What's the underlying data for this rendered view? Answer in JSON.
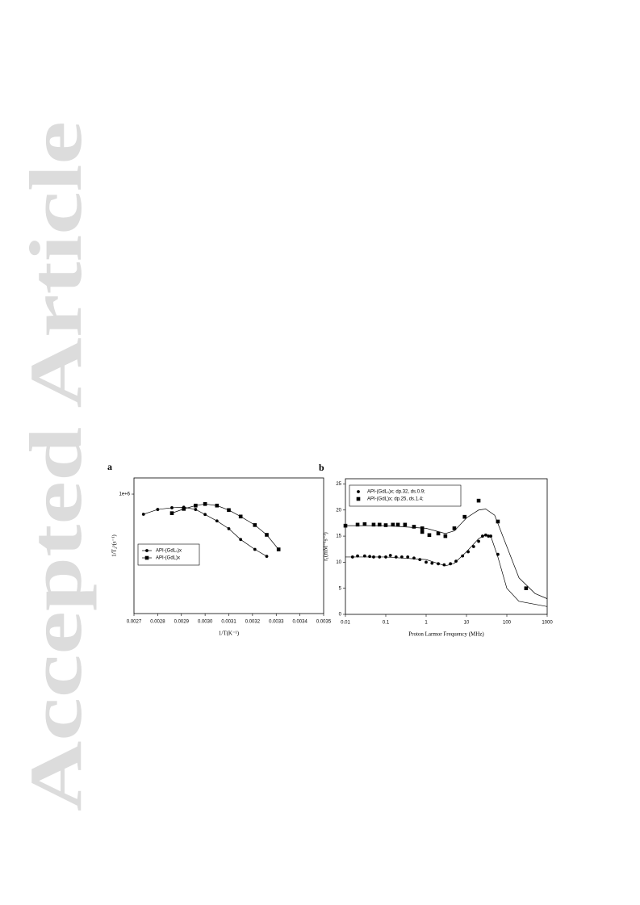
{
  "watermark": "Accepted Article",
  "chart_data": [
    {
      "type": "scatter",
      "label": "a",
      "xlabel": "1/T(K⁻¹)",
      "ylabel": "1/T₂ᵖ(s⁻¹)",
      "xlim": [
        0.0027,
        0.0035
      ],
      "xticks": [
        0.0027,
        0.0028,
        0.0029,
        {
          "value": 0.003,
          "label": "0.0030"
        },
        0.0031,
        0.0032,
        0.0033,
        0.0034,
        0.0035
      ],
      "ylim": [
        50000,
        1500000
      ],
      "ylog": true,
      "yticks": [
        {
          "value": 1000000,
          "label": "1e+6"
        }
      ],
      "legend": "lower left",
      "series": [
        {
          "name": "API-(GdL₁)x",
          "color": "#000000",
          "marker": "circle",
          "line": true,
          "x": [
            0.00274,
            0.0028,
            0.00286,
            0.00291,
            0.00296,
            0.003,
            0.00305,
            0.0031,
            0.00315,
            0.00321,
            0.00326
          ],
          "values": [
            603000,
            680000,
            710000,
            720000,
            680000,
            600000,
            510000,
            420000,
            320000,
            250000,
            210000
          ]
        },
        {
          "name": "API-(GdL)x",
          "color": "#000000",
          "marker": "square",
          "line": true,
          "x": [
            0.00286,
            0.00291,
            0.00296,
            0.003,
            0.00305,
            0.0031,
            0.00315,
            0.00321,
            0.00326,
            0.00331
          ],
          "values": [
            620000,
            690000,
            750000,
            780000,
            750000,
            670000,
            570000,
            460000,
            360000,
            250000
          ]
        }
      ]
    },
    {
      "type": "scatter",
      "label": "b",
      "xlabel": "Proton Larmor Frequency (MHz)",
      "ylabel": "r₁(mM⁻¹s⁻¹)",
      "xlim": [
        0.01,
        1000
      ],
      "xlog": true,
      "xticks": [
        0.01,
        0.1,
        1,
        10,
        100,
        1000
      ],
      "ylim": [
        0,
        26
      ],
      "yticks": [
        0,
        5,
        10,
        15,
        20,
        25
      ],
      "legend": "upper left",
      "series": [
        {
          "name": "API-(GdL₁)x; dp.32, ds.0.9;",
          "color": "#000000",
          "marker": "circle",
          "x": [
            0.015,
            0.02,
            0.03,
            0.04,
            0.05,
            0.07,
            0.1,
            0.13,
            0.18,
            0.25,
            0.35,
            0.5,
            0.7,
            1,
            1.4,
            2,
            2.8,
            4,
            5.5,
            8,
            11,
            15,
            20,
            25,
            30,
            35,
            40,
            60
          ],
          "values": [
            11,
            11.2,
            11.2,
            11.1,
            11,
            11,
            11,
            11.3,
            11,
            11,
            11,
            10.8,
            10.5,
            10,
            9.8,
            9.7,
            9.5,
            9.7,
            10.2,
            11.2,
            12,
            13,
            14,
            15,
            15.2,
            15,
            15,
            11.5
          ]
        },
        {
          "name": "API-(GdL)x; dp.25, ds.1.4;",
          "color": "#000000",
          "marker": "square",
          "x": [
            0.01,
            0.02,
            0.03,
            0.05,
            0.07,
            0.1,
            0.15,
            0.2,
            0.3,
            0.5,
            0.8,
            0.8,
            1.2,
            2,
            3,
            5,
            9,
            20,
            60,
            300
          ],
          "values": [
            17,
            17.2,
            17.3,
            17.2,
            17.2,
            17.1,
            17.2,
            17.2,
            17.2,
            16.8,
            15.8,
            16.5,
            15.2,
            15.5,
            15,
            16.5,
            18.7,
            21.8,
            17.8,
            5
          ]
        },
        {
          "color": "#000000",
          "line": true,
          "x": [
            0.01,
            0.1,
            1,
            3,
            5,
            10,
            20,
            30,
            40,
            60,
            100,
            200,
            1000
          ],
          "values": [
            11,
            11,
            10.5,
            9.3,
            9.8,
            12,
            14.5,
            15.3,
            15,
            11,
            5,
            2.5,
            1.5
          ]
        },
        {
          "color": "#000000",
          "line": true,
          "x": [
            0.01,
            0.1,
            1,
            3,
            5,
            10,
            20,
            30,
            50,
            100,
            200,
            500,
            1000
          ],
          "values": [
            17,
            17,
            16.5,
            15.5,
            16,
            18.5,
            20,
            20.2,
            19,
            13,
            7,
            4,
            3
          ]
        }
      ]
    }
  ]
}
